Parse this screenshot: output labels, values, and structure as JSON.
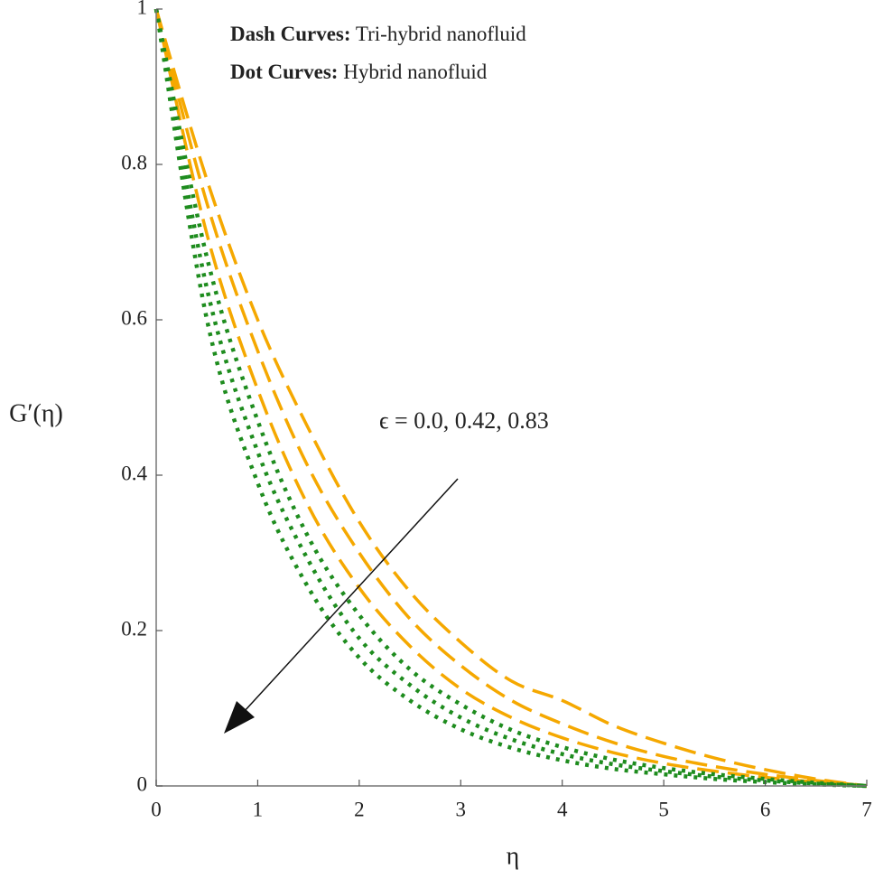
{
  "chart_data": {
    "type": "line",
    "x_label": "η",
    "y_label": "G′(η)",
    "annotations": [
      {
        "label": "Dash Curves:",
        "text": "Tri-hybrid nanofluid"
      },
      {
        "label": "Dot Curves:",
        "text": "Hybrid nanofluid"
      },
      {
        "text": "ϵ = 0.0, 0.42, 0.83"
      }
    ],
    "x": [
      0,
      0.5,
      1,
      1.5,
      2,
      2.5,
      3,
      3.5,
      4,
      4.5,
      5,
      5.5,
      6,
      6.5,
      7
    ],
    "series": [
      {
        "color": "#f5a800",
        "style": "dash",
        "values": [
          1,
          0.78,
          0.6,
          0.46,
          0.34,
          0.25,
          0.185,
          0.135,
          0.11,
          0.078,
          0.055,
          0.036,
          0.021,
          0.009,
          0
        ]
      },
      {
        "color": "#f5a800",
        "style": "dash",
        "values": [
          1,
          0.75,
          0.56,
          0.41,
          0.3,
          0.215,
          0.155,
          0.11,
          0.08,
          0.056,
          0.038,
          0.025,
          0.015,
          0.007,
          0
        ]
      },
      {
        "color": "#f5a800",
        "style": "dash",
        "values": [
          1,
          0.71,
          0.51,
          0.36,
          0.255,
          0.18,
          0.125,
          0.088,
          0.062,
          0.043,
          0.029,
          0.019,
          0.011,
          0.005,
          0
        ]
      },
      {
        "color": "#1e8c1e",
        "style": "dot",
        "values": [
          1,
          0.68,
          0.47,
          0.32,
          0.22,
          0.15,
          0.105,
          0.072,
          0.05,
          0.034,
          0.023,
          0.015,
          0.009,
          0.004,
          0
        ]
      },
      {
        "color": "#1e8c1e",
        "style": "dot",
        "values": [
          1,
          0.64,
          0.43,
          0.29,
          0.19,
          0.13,
          0.088,
          0.06,
          0.041,
          0.028,
          0.019,
          0.012,
          0.007,
          0.003,
          0
        ]
      },
      {
        "color": "#1e8c1e",
        "style": "dot",
        "values": [
          1,
          0.6,
          0.39,
          0.255,
          0.165,
          0.11,
          0.073,
          0.049,
          0.033,
          0.022,
          0.015,
          0.009,
          0.005,
          0.002,
          0
        ]
      }
    ],
    "xlim": [
      0,
      7
    ],
    "xticks": [
      0,
      1,
      2,
      3,
      4,
      5,
      6,
      7
    ],
    "ylim": [
      0,
      1
    ],
    "yticks": [
      0,
      0.2,
      0.4,
      0.6,
      0.8,
      1
    ]
  }
}
